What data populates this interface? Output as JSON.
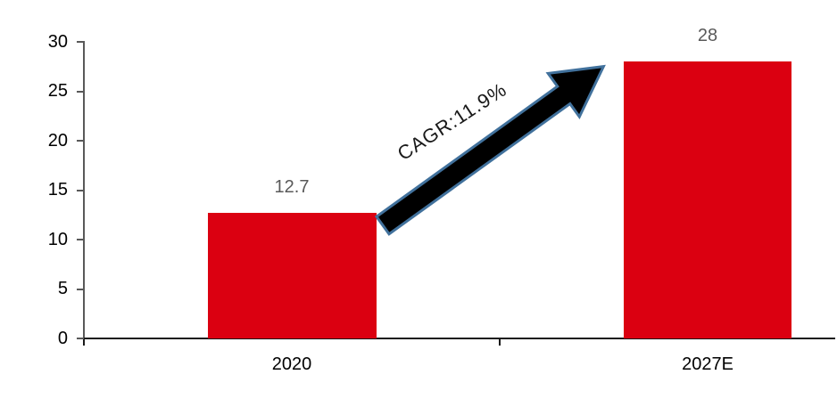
{
  "chart_data": {
    "type": "bar",
    "title": "",
    "categories": [
      "2020",
      "2027E"
    ],
    "values": [
      12.7,
      28
    ],
    "value_labels": [
      "12.7",
      "28"
    ],
    "ytick_labels": [
      "30",
      "25",
      "20",
      "15",
      "10",
      "5",
      "0"
    ],
    "ylim": [
      0,
      30
    ],
    "xlabel": "",
    "ylabel": "",
    "grid": "off",
    "legend": "none",
    "annotation": {
      "text": "CAGR:11.9%",
      "shape": "growth-arrow"
    },
    "colors": {
      "bar": "#DB0011",
      "value_label": "#595959",
      "category_label": "#000000",
      "y_axis": "#595959",
      "x_axis": "#1a1a1a",
      "arrow_fill": "#000000",
      "arrow_outline": "#41719C"
    }
  }
}
